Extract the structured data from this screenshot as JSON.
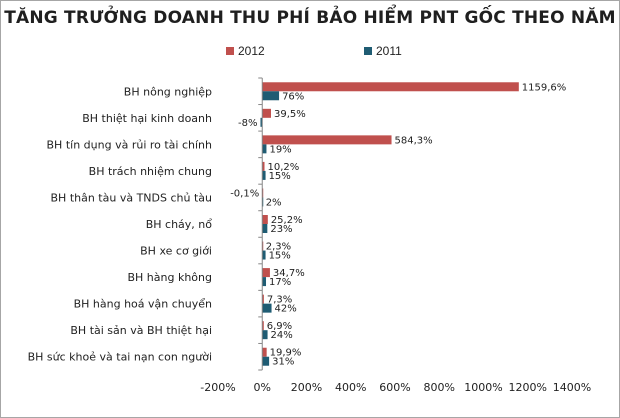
{
  "chart_data": {
    "type": "bar",
    "orientation": "horizontal",
    "title": "TĂNG TRƯỞNG DOANH THU PHÍ BẢO HIỂM PNT GỐC THEO NĂM",
    "categories": [
      "BH nông nghiệp",
      "BH thiệt hại kinh doanh",
      "BH tín dụng và rủi ro tài chính",
      "BH trách nhiệm chung",
      "BH thân tàu và TNDS chủ tàu",
      "BH cháy, nổ",
      "BH xe cơ giới",
      "BH hàng không",
      "BH hàng hoá vận chuyển",
      "BH tài sản và BH thiệt hại",
      "BH sức khoẻ và tai nạn con người"
    ],
    "series": [
      {
        "name": "2012",
        "color": "#c0504d",
        "values": [
          1159.6,
          39.5,
          584.3,
          10.2,
          -0.1,
          25.2,
          2.3,
          34.7,
          7.3,
          6.9,
          19.9
        ],
        "labels": [
          "1159,6%",
          "39,5%",
          "584,3%",
          "10,2%",
          "-0,1%",
          "25,2%",
          "2,3%",
          "34,7%",
          "7,3%",
          "6,9%",
          "19,9%"
        ]
      },
      {
        "name": "2011",
        "color": "#1f5c73",
        "values": [
          76,
          -8,
          19,
          15,
          2,
          23,
          15,
          17,
          42,
          24,
          31
        ],
        "labels": [
          "76%",
          "-8%",
          "19%",
          "15%",
          "2%",
          "23%",
          "15%",
          "17%",
          "42%",
          "24%",
          "31%"
        ]
      }
    ],
    "xlim": [
      -200,
      1400
    ],
    "xticks": [
      -200,
      0,
      200,
      400,
      600,
      800,
      1000,
      1200,
      1400
    ],
    "xtick_labels": [
      "-200%",
      "0%",
      "200%",
      "400%",
      "600%",
      "800%",
      "1000%",
      "1200%",
      "1400%"
    ],
    "grid": false,
    "legend": "top"
  }
}
